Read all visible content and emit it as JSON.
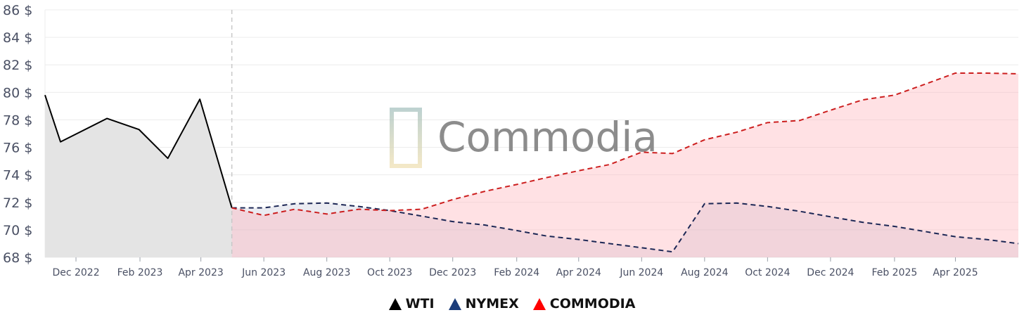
{
  "chart_data": {
    "type": "line",
    "watermark": "Commodia",
    "ylim": [
      68,
      86
    ],
    "yticks": [
      68,
      70,
      72,
      74,
      76,
      78,
      80,
      82,
      84,
      86
    ],
    "ytick_format": "{v} $",
    "grid": true,
    "legend_position": "bottom-center",
    "x_range": [
      "2022-11-01",
      "2025-06-01"
    ],
    "xticks": [
      {
        "date": "2022-12-01",
        "label": "Dec 2022"
      },
      {
        "date": "2023-02-01",
        "label": "Feb 2023"
      },
      {
        "date": "2023-04-01",
        "label": "Apr 2023"
      },
      {
        "date": "2023-06-01",
        "label": "Jun 2023"
      },
      {
        "date": "2023-08-01",
        "label": "Aug 2023"
      },
      {
        "date": "2023-10-01",
        "label": "Oct 2023"
      },
      {
        "date": "2023-12-01",
        "label": "Dec 2023"
      },
      {
        "date": "2024-02-01",
        "label": "Feb 2024"
      },
      {
        "date": "2024-04-01",
        "label": "Apr 2024"
      },
      {
        "date": "2024-06-01",
        "label": "Jun 2024"
      },
      {
        "date": "2024-08-01",
        "label": "Aug 2024"
      },
      {
        "date": "2024-10-01",
        "label": "Oct 2024"
      },
      {
        "date": "2024-12-01",
        "label": "Dec 2024"
      },
      {
        "date": "2025-02-01",
        "label": "Feb 2025"
      },
      {
        "date": "2025-04-01",
        "label": "Apr 2025"
      }
    ],
    "forecast_start": "2023-05-01",
    "series": [
      {
        "name": "WTI",
        "color": "#000000",
        "fill": "#e4e4e4",
        "style": "solid",
        "points": [
          [
            "2022-11-01",
            79.8
          ],
          [
            "2022-11-16",
            76.4
          ],
          [
            "2022-12-31",
            78.1
          ],
          [
            "2023-01-31",
            77.3
          ],
          [
            "2023-02-28",
            75.2
          ],
          [
            "2023-03-31",
            79.5
          ],
          [
            "2023-05-01",
            71.6
          ]
        ]
      },
      {
        "name": "NYMEX",
        "color": "#1c2755",
        "fill": "rgba(170,175,200,0.25)",
        "style": "dashed",
        "points": [
          [
            "2023-05-01",
            71.6
          ],
          [
            "2023-06-01",
            71.6
          ],
          [
            "2023-07-01",
            71.9
          ],
          [
            "2023-08-01",
            71.95
          ],
          [
            "2023-09-01",
            71.7
          ],
          [
            "2023-10-01",
            71.4
          ],
          [
            "2023-11-01",
            71.0
          ],
          [
            "2023-12-01",
            70.6
          ],
          [
            "2024-01-01",
            70.35
          ],
          [
            "2024-02-01",
            69.95
          ],
          [
            "2024-03-01",
            69.55
          ],
          [
            "2024-04-01",
            69.3
          ],
          [
            "2024-05-01",
            69.0
          ],
          [
            "2024-06-01",
            68.7
          ],
          [
            "2024-07-01",
            68.4
          ],
          [
            "2024-08-01",
            71.9
          ],
          [
            "2024-09-01",
            71.95
          ],
          [
            "2024-10-01",
            71.7
          ],
          [
            "2024-11-01",
            71.35
          ],
          [
            "2024-12-01",
            70.95
          ],
          [
            "2025-01-01",
            70.55
          ],
          [
            "2025-02-01",
            70.25
          ],
          [
            "2025-03-01",
            69.9
          ],
          [
            "2025-04-01",
            69.5
          ],
          [
            "2025-05-01",
            69.3
          ],
          [
            "2025-06-01",
            69.0
          ]
        ]
      },
      {
        "name": "COMMODIA",
        "color": "#cc1f1f",
        "fill": "rgba(255,175,185,0.38)",
        "style": "dashed",
        "points": [
          [
            "2023-05-01",
            71.6
          ],
          [
            "2023-06-01",
            71.05
          ],
          [
            "2023-07-01",
            71.5
          ],
          [
            "2023-08-01",
            71.15
          ],
          [
            "2023-09-01",
            71.5
          ],
          [
            "2023-10-01",
            71.4
          ],
          [
            "2023-11-01",
            71.5
          ],
          [
            "2023-12-01",
            72.2
          ],
          [
            "2024-01-01",
            72.8
          ],
          [
            "2024-02-01",
            73.3
          ],
          [
            "2024-03-01",
            73.8
          ],
          [
            "2024-04-01",
            74.3
          ],
          [
            "2024-05-01",
            74.75
          ],
          [
            "2024-06-01",
            75.65
          ],
          [
            "2024-07-01",
            75.55
          ],
          [
            "2024-08-01",
            76.55
          ],
          [
            "2024-09-01",
            77.1
          ],
          [
            "2024-10-01",
            77.8
          ],
          [
            "2024-11-01",
            77.95
          ],
          [
            "2024-12-01",
            78.7
          ],
          [
            "2025-01-01",
            79.45
          ],
          [
            "2025-02-01",
            79.8
          ],
          [
            "2025-03-01",
            80.55
          ],
          [
            "2025-04-01",
            81.4
          ],
          [
            "2025-05-01",
            81.4
          ],
          [
            "2025-06-01",
            81.35
          ]
        ]
      }
    ],
    "legend": [
      {
        "label": "WTI",
        "color": "#000000"
      },
      {
        "label": "NYMEX",
        "color": "#1c3d7a"
      },
      {
        "label": "COMMODIA",
        "color": "#ff0000"
      }
    ]
  }
}
